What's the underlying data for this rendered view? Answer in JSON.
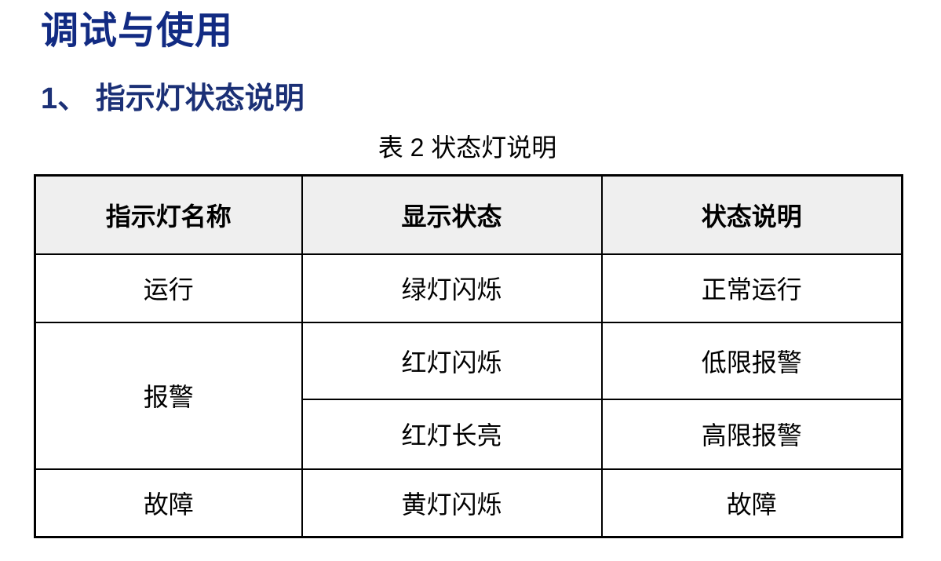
{
  "document": {
    "title": "调试与使用",
    "section_heading": "1、 指示灯状态说明",
    "table_caption": "表 2  状态灯说明"
  },
  "status_table": {
    "headers": [
      "指示灯名称",
      "显示状态",
      "状态说明"
    ],
    "rows": [
      {
        "indicator": "运行",
        "states": [
          {
            "display": "绿灯闪烁",
            "description": "正常运行"
          }
        ]
      },
      {
        "indicator": "报警",
        "states": [
          {
            "display": "红灯闪烁",
            "description": "低限报警"
          },
          {
            "display": "红灯长亮",
            "description": "高限报警"
          }
        ]
      },
      {
        "indicator": "故障",
        "states": [
          {
            "display": "黄灯闪烁",
            "description": "故障"
          }
        ]
      }
    ]
  },
  "colors": {
    "title_text": "#122b83",
    "heading_text": "#1b3076",
    "header_row_bg": "#efefef",
    "table_border": "#000000"
  }
}
